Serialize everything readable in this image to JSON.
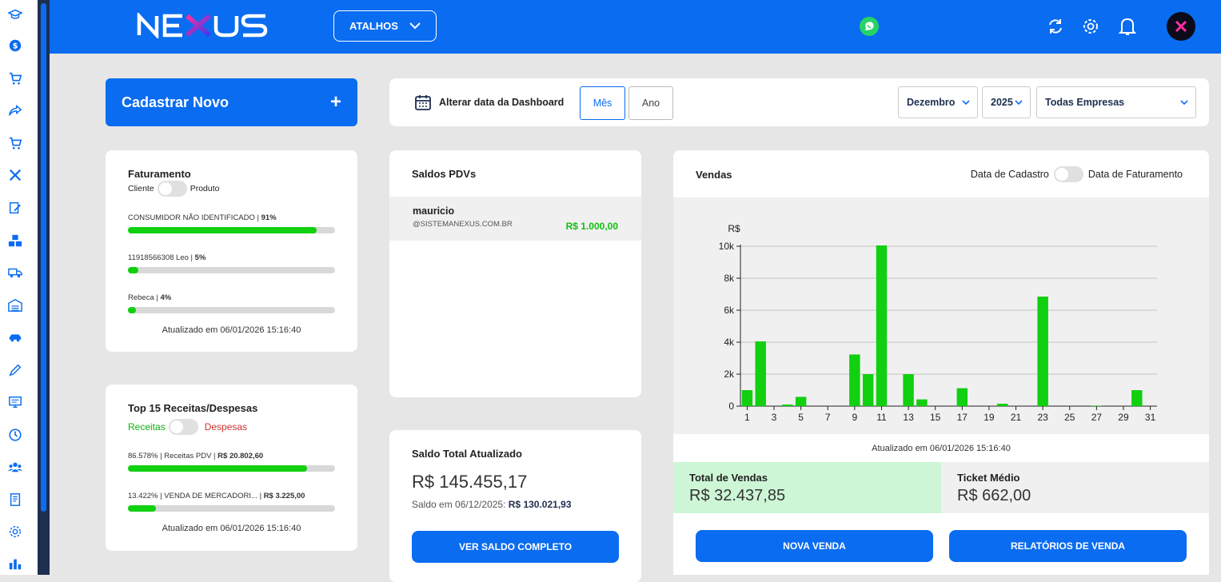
{
  "header": {
    "logo_text": "NEXUS",
    "shortcuts_label": "ATALHOS",
    "icons": [
      "whatsapp-icon",
      "refresh-icon",
      "gear-icon",
      "bell-icon",
      "avatar-icon"
    ]
  },
  "sidebar": {
    "icons": [
      "graduation-cap-icon",
      "dollar-icon",
      "cart-icon",
      "share-icon",
      "cart-download-icon",
      "tools-icon",
      "edit-icon",
      "boxes-icon",
      "truck-icon",
      "warehouse-icon",
      "car-icon",
      "pen-icon",
      "monitor-icon",
      "clock-icon",
      "users-icon",
      "report-icon",
      "gear-icon",
      "chart-icon"
    ]
  },
  "new_button": {
    "label": "Cadastrar Novo",
    "plus": "+"
  },
  "date_bar": {
    "label": "Alterar data da Dashboard",
    "month_tab": "Mês",
    "year_tab": "Ano",
    "month_value": "Dezembro",
    "year_value": "2025",
    "company_value": "Todas Empresas"
  },
  "billing": {
    "title": "Faturamento",
    "toggle_left": "Cliente",
    "toggle_right": "Produto",
    "rows": [
      {
        "name": "CONSUMIDOR NÃO IDENTIFICADO",
        "pct": "91%",
        "fill": 0.91
      },
      {
        "name": "11918566308 Leo",
        "pct": "5%",
        "fill": 0.05
      },
      {
        "name": "Rebeca",
        "pct": "4%",
        "fill": 0.04
      }
    ],
    "updated": "Atualizado em 06/01/2026 15:16:40"
  },
  "top15": {
    "title": "Top 15 Receitas/Despesas",
    "toggle_left": "Receitas",
    "toggle_right": "Despesas",
    "rows": [
      {
        "pct": "86.578%",
        "name": "Receitas PDV",
        "value": "R$ 20.802,60",
        "fill": 0.86578
      },
      {
        "pct": "13.422%",
        "name": "VENDA DE MERCADORI...",
        "value": "R$ 3.225,00",
        "fill": 0.13422
      }
    ],
    "updated": "Atualizado em 06/01/2026 15:16:40"
  },
  "pdv": {
    "title": "Saldos PDVs",
    "user": "mauricio",
    "email": "@SISTEMANEXUS.COM.BR",
    "value": "R$ 1.000,00"
  },
  "balance": {
    "title": "Saldo Total Atualizado",
    "total": "R$ 145.455,17",
    "prev_label": "Saldo em 06/12/2025:",
    "prev_value": "R$ 130.021,93",
    "button": "VER SALDO COMPLETO"
  },
  "sales": {
    "title": "Vendas",
    "toggle_left": "Data de Cadastro",
    "toggle_right": "Data de Faturamento",
    "updated": "Atualizado em 06/01/2026 15:16:40",
    "total_label": "Total de Vendas",
    "total_value": "R$ 32.437,85",
    "ticket_label": "Ticket Médio",
    "ticket_value": "R$ 662,00",
    "btn_new": "NOVA VENDA",
    "btn_reports": "RELATÓRIOS DE VENDA"
  },
  "chart_data": {
    "type": "bar",
    "ylabel": "R$",
    "ylim": [
      0,
      10000
    ],
    "y_ticks": [
      "0",
      "2k",
      "4k",
      "6k",
      "8k",
      "10k"
    ],
    "x_ticks": [
      "1",
      "3",
      "5",
      "7",
      "9",
      "11",
      "13",
      "15",
      "17",
      "19",
      "21",
      "23",
      "25",
      "27",
      "29",
      "31"
    ],
    "grid": true,
    "x": [
      1,
      2,
      3,
      4,
      5,
      6,
      7,
      8,
      9,
      10,
      11,
      12,
      13,
      14,
      15,
      16,
      17,
      18,
      19,
      20,
      21,
      22,
      23,
      24,
      25,
      26,
      27,
      28,
      29,
      30,
      31
    ],
    "values": [
      1000,
      4050,
      0,
      100,
      580,
      0,
      0,
      0,
      3230,
      2000,
      10050,
      0,
      2000,
      420,
      0,
      0,
      1120,
      0,
      0,
      150,
      0,
      0,
      6850,
      0,
      0,
      0,
      30,
      0,
      0,
      1000,
      0
    ],
    "color": "#10d010"
  }
}
